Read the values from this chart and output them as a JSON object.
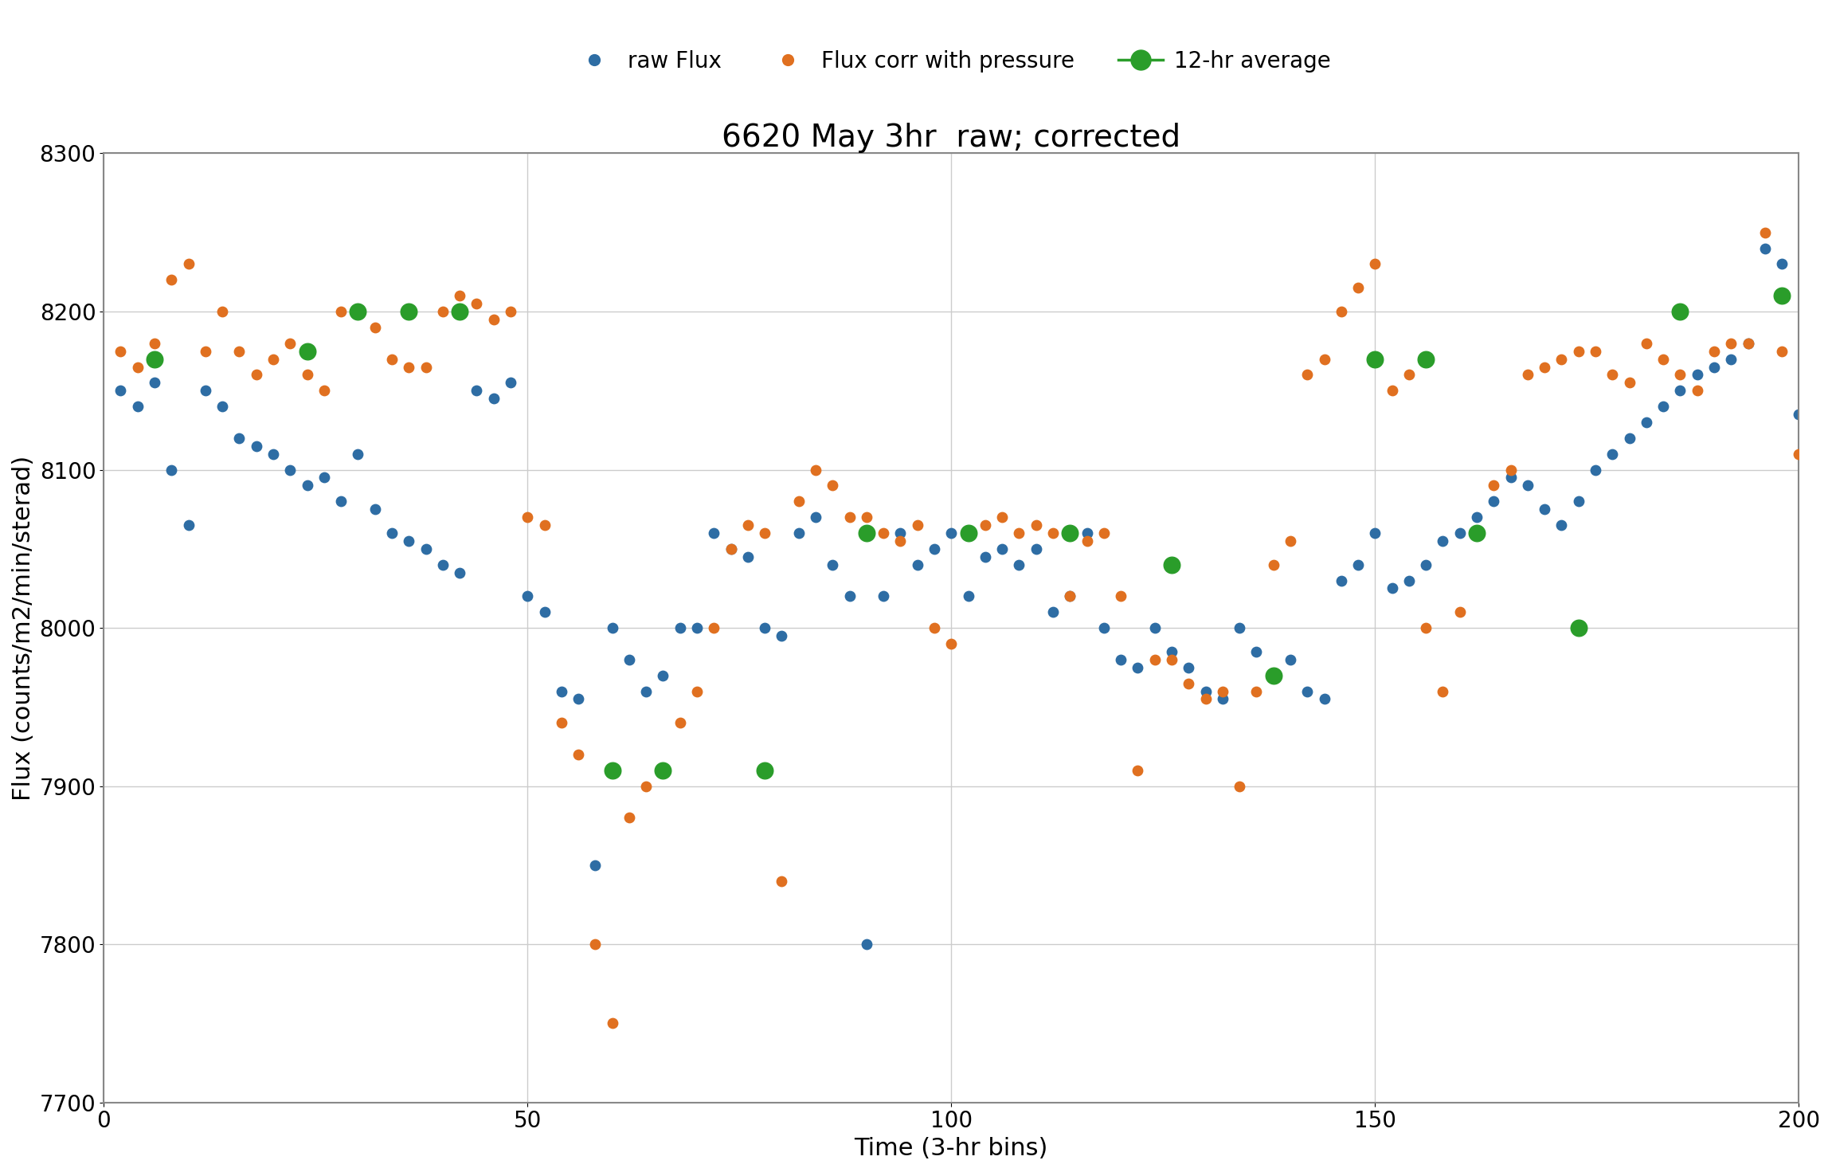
{
  "title": "6620 May 3hr  raw; corrected",
  "xlabel": "Time (3-hr bins)",
  "ylabel": "Flux (counts/m2/min/sterad)",
  "xlim": [
    0,
    200
  ],
  "ylim": [
    7700,
    8300
  ],
  "xticks": [
    0,
    50,
    100,
    150,
    200
  ],
  "yticks": [
    7700,
    7800,
    7900,
    8000,
    8100,
    8200,
    8300
  ],
  "title_fontsize": 28,
  "label_fontsize": 22,
  "tick_fontsize": 20,
  "bg_color": "#ffffff",
  "plot_bg_color": "#ffffff",
  "raw_color": "#2e6da4",
  "corr_color": "#e07020",
  "avg_color": "#2a9d2a",
  "raw_size": 80,
  "corr_size": 80,
  "avg_size": 220,
  "raw_x": [
    2,
    4,
    6,
    8,
    10,
    12,
    14,
    16,
    18,
    20,
    22,
    24,
    26,
    28,
    30,
    32,
    34,
    36,
    38,
    40,
    42,
    44,
    46,
    48,
    50,
    52,
    54,
    56,
    58,
    60,
    62,
    64,
    66,
    68,
    70,
    72,
    74,
    76,
    78,
    80,
    82,
    84,
    86,
    88,
    90,
    92,
    94,
    96,
    98,
    100,
    102,
    104,
    106,
    108,
    110,
    112,
    114,
    116,
    118,
    120,
    122,
    124,
    126,
    128,
    130,
    132,
    134,
    136,
    138,
    140,
    142,
    144,
    146,
    148,
    150,
    152,
    154,
    156,
    158,
    160,
    162,
    164,
    166,
    168,
    170,
    172,
    174,
    176,
    178,
    180,
    182,
    184,
    186,
    188,
    190,
    192,
    194,
    196,
    198,
    200
  ],
  "raw_y": [
    8150,
    8140,
    8155,
    8100,
    8065,
    8150,
    8140,
    8120,
    8115,
    8110,
    8100,
    8090,
    8095,
    8080,
    8110,
    8075,
    8060,
    8055,
    8050,
    8040,
    8035,
    8150,
    8145,
    8155,
    8020,
    8010,
    7960,
    7955,
    7850,
    8000,
    7980,
    7960,
    7970,
    8000,
    8000,
    8060,
    8050,
    8045,
    8000,
    7995,
    8060,
    8070,
    8040,
    8020,
    7800,
    8020,
    8060,
    8040,
    8050,
    8060,
    8020,
    8045,
    8050,
    8040,
    8050,
    8010,
    8020,
    8060,
    8000,
    7980,
    7975,
    8000,
    7985,
    7975,
    7960,
    7955,
    8000,
    7985,
    7970,
    7980,
    7960,
    7955,
    8030,
    8040,
    8060,
    8025,
    8030,
    8040,
    8055,
    8060,
    8070,
    8080,
    8095,
    8090,
    8075,
    8065,
    8080,
    8100,
    8110,
    8120,
    8130,
    8140,
    8150,
    8160,
    8165,
    8170,
    8180,
    8240,
    8230,
    8135
  ],
  "corr_x": [
    2,
    4,
    6,
    8,
    10,
    12,
    14,
    16,
    18,
    20,
    22,
    24,
    26,
    28,
    30,
    32,
    34,
    36,
    38,
    40,
    42,
    44,
    46,
    48,
    50,
    52,
    54,
    56,
    58,
    60,
    62,
    64,
    66,
    68,
    70,
    72,
    74,
    76,
    78,
    80,
    82,
    84,
    86,
    88,
    90,
    92,
    94,
    96,
    98,
    100,
    102,
    104,
    106,
    108,
    110,
    112,
    114,
    116,
    118,
    120,
    122,
    124,
    126,
    128,
    130,
    132,
    134,
    136,
    138,
    140,
    142,
    144,
    146,
    148,
    150,
    152,
    154,
    156,
    158,
    160,
    162,
    164,
    166,
    168,
    170,
    172,
    174,
    176,
    178,
    180,
    182,
    184,
    186,
    188,
    190,
    192,
    194,
    196,
    198,
    200
  ],
  "corr_y": [
    8175,
    8165,
    8180,
    8220,
    8230,
    8175,
    8200,
    8175,
    8160,
    8170,
    8180,
    8160,
    8150,
    8200,
    8200,
    8190,
    8170,
    8165,
    8165,
    8200,
    8210,
    8205,
    8195,
    8200,
    8070,
    8065,
    7940,
    7920,
    7800,
    7750,
    7880,
    7900,
    7910,
    7940,
    7960,
    8000,
    8050,
    8065,
    8060,
    7840,
    8080,
    8100,
    8090,
    8070,
    8070,
    8060,
    8055,
    8065,
    8000,
    7990,
    8060,
    8065,
    8070,
    8060,
    8065,
    8060,
    8020,
    8055,
    8060,
    8020,
    7910,
    7980,
    7980,
    7965,
    7955,
    7960,
    7900,
    7960,
    8040,
    8055,
    8160,
    8170,
    8200,
    8215,
    8230,
    8150,
    8160,
    8000,
    7960,
    8010,
    8060,
    8090,
    8100,
    8160,
    8165,
    8170,
    8175,
    8175,
    8160,
    8155,
    8180,
    8170,
    8160,
    8150,
    8175,
    8180,
    8180,
    8250,
    8175,
    8110
  ],
  "avg_x": [
    6,
    24,
    30,
    36,
    42,
    60,
    66,
    78,
    90,
    102,
    114,
    126,
    138,
    150,
    156,
    162,
    174,
    186,
    198
  ],
  "avg_y": [
    8170,
    8175,
    8200,
    8200,
    8200,
    7910,
    7910,
    7910,
    8060,
    8060,
    8060,
    8040,
    7970,
    8170,
    8170,
    8060,
    8000,
    8200,
    8210
  ],
  "grid_color": "#cccccc",
  "spine_color": "#888888"
}
